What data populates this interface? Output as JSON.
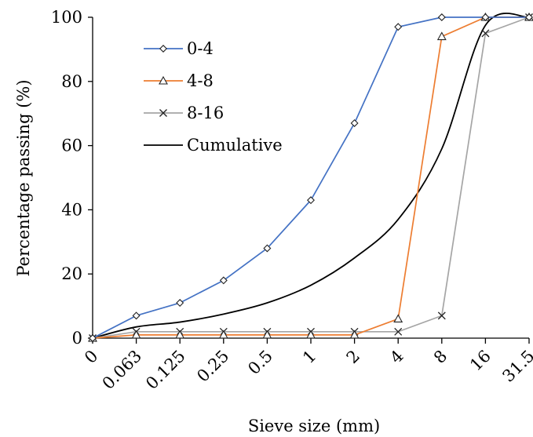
{
  "chart_data": {
    "type": "line",
    "title": "",
    "xlabel": "Sieve size (mm)",
    "ylabel": "Percentage passing (%)",
    "categories": [
      "0",
      "0.063",
      "0.125",
      "0.25",
      "0.5",
      "1",
      "2",
      "4",
      "8",
      "16",
      "31.5"
    ],
    "ylim": [
      0,
      100
    ],
    "yticks": [
      0,
      20,
      40,
      60,
      80,
      100
    ],
    "grid": false,
    "legend": "top-left",
    "series": [
      {
        "name": "0-4",
        "color": "#4472C4",
        "marker": "diamond",
        "values": [
          0,
          7,
          11,
          18,
          28,
          43,
          67,
          97,
          100,
          100,
          100
        ]
      },
      {
        "name": "4-8",
        "color": "#ED7D31",
        "marker": "triangle",
        "values": [
          0,
          1,
          1,
          1,
          1,
          1,
          1,
          6,
          94,
          100,
          100
        ]
      },
      {
        "name": "8-16",
        "color": "#A5A5A5",
        "marker": "x",
        "values": [
          0,
          2,
          2,
          2,
          2,
          2,
          2,
          2,
          7,
          95,
          100
        ]
      },
      {
        "name": "Cumulative",
        "color": "#000000",
        "marker": "none",
        "values": [
          0,
          3.5,
          5,
          7.5,
          11,
          16.5,
          25,
          37,
          59,
          97.5,
          100
        ]
      }
    ]
  }
}
